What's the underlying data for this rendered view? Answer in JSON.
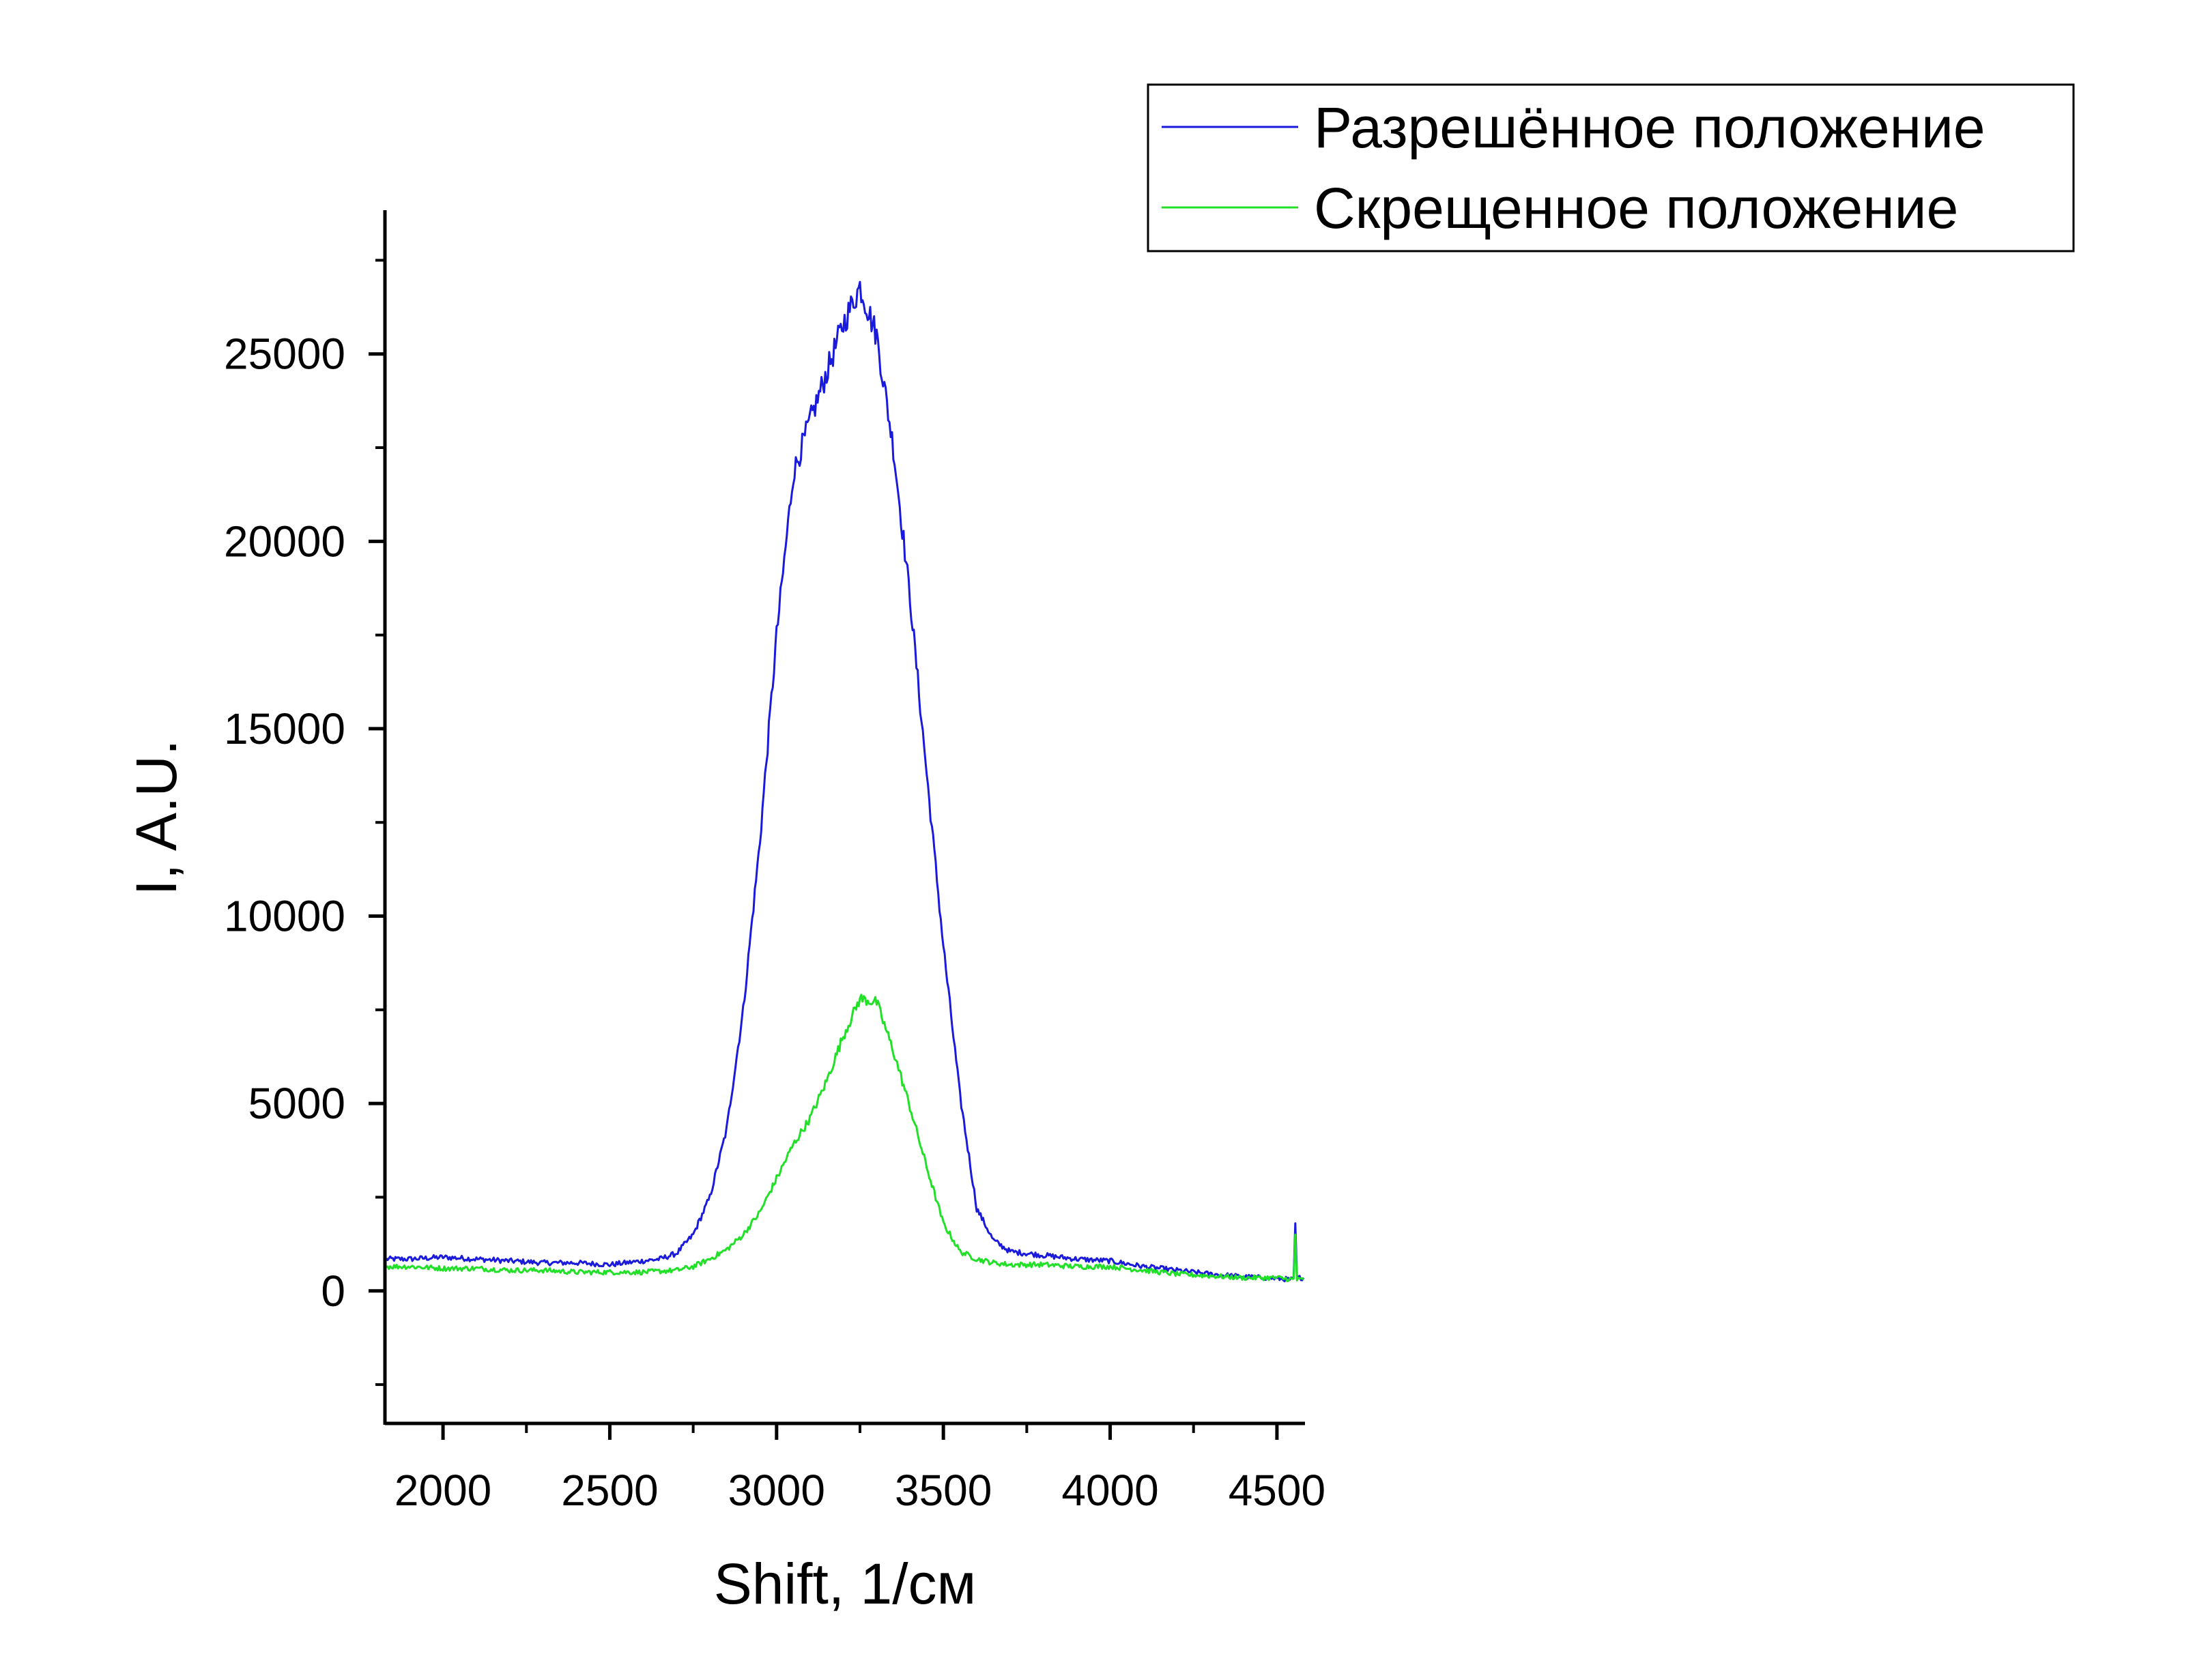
{
  "chart_data": {
    "type": "line",
    "xlabel": "Shift, 1/см",
    "ylabel": "I, A.U.",
    "xlim": [
      1830,
      4580
    ],
    "ylim": [
      -3500,
      28800
    ],
    "xticks": [
      2000,
      2500,
      3000,
      3500,
      4000,
      4500
    ],
    "yticks": [
      0,
      5000,
      10000,
      15000,
      20000,
      25000
    ],
    "grid": false,
    "legend_position": "top-right",
    "series": [
      {
        "name": "Разрешённое положение",
        "color": "#1a1adc",
        "x": [
          1830,
          1900,
          2000,
          2100,
          2200,
          2300,
          2400,
          2500,
          2600,
          2650,
          2700,
          2750,
          2800,
          2850,
          2900,
          2950,
          3000,
          3050,
          3100,
          3150,
          3200,
          3250,
          3300,
          3350,
          3400,
          3450,
          3500,
          3550,
          3600,
          3650,
          3700,
          3800,
          3900,
          4000,
          4100,
          4200,
          4300,
          4400,
          4500,
          4550,
          4555,
          4560,
          4580
        ],
        "y": [
          850,
          850,
          900,
          850,
          800,
          750,
          750,
          700,
          800,
          850,
          1000,
          1500,
          2500,
          4300,
          7500,
          12000,
          17500,
          21800,
          23200,
          24500,
          25800,
          26800,
          25500,
          22500,
          18500,
          13800,
          9200,
          5200,
          2200,
          1350,
          1050,
          950,
          850,
          800,
          650,
          550,
          450,
          380,
          330,
          300,
          1800,
          350,
          350
        ]
      },
      {
        "name": "Скрещенное положение",
        "color": "#22e028",
        "x": [
          1830,
          1900,
          2000,
          2100,
          2200,
          2300,
          2400,
          2500,
          2600,
          2700,
          2750,
          2800,
          2850,
          2900,
          2950,
          3000,
          3050,
          3100,
          3150,
          3200,
          3250,
          3300,
          3350,
          3400,
          3450,
          3500,
          3550,
          3600,
          3650,
          3700,
          3800,
          3900,
          4000,
          4100,
          4200,
          4300,
          4400,
          4500,
          4550,
          4555,
          4560,
          4580
        ],
        "y": [
          650,
          650,
          600,
          600,
          550,
          550,
          500,
          500,
          500,
          550,
          650,
          850,
          1100,
          1500,
          2100,
          3000,
          3900,
          4600,
          5600,
          6800,
          7800,
          7700,
          6400,
          4900,
          3300,
          1800,
          1050,
          850,
          750,
          700,
          700,
          650,
          650,
          550,
          450,
          400,
          350,
          350,
          300,
          1500,
          300,
          300
        ]
      }
    ]
  }
}
